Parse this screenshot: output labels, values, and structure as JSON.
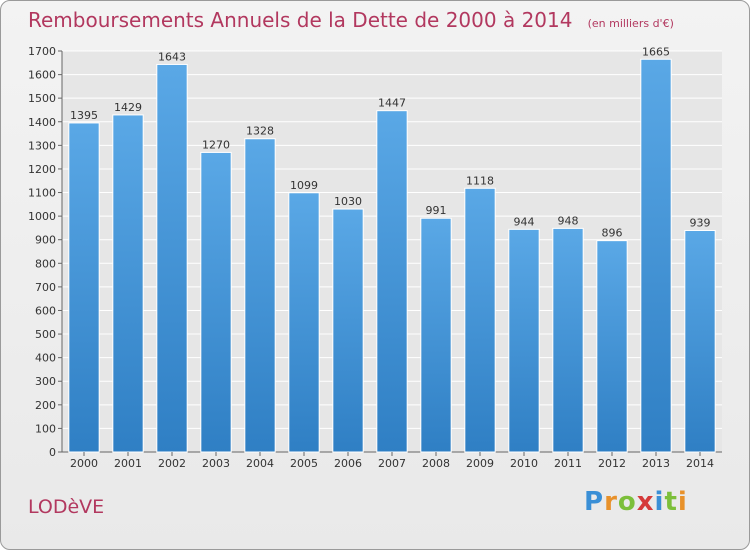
{
  "header": {
    "title": "Remboursements Annuels de la Dette de 2000 à 2014",
    "subtitle": "(en milliers d'€)"
  },
  "footer": {
    "place": "LODèVE",
    "logo_text": "Proxiti",
    "logo_colors": [
      "#3a8fd6",
      "#e8912a",
      "#7cbf3a",
      "#d53a3a",
      "#3a8fd6",
      "#7cbf3a",
      "#e8912a"
    ]
  },
  "colors": {
    "bar": "#5aa8e6",
    "bar_dark": "#2f7fc4",
    "title": "#b2385f"
  },
  "chart_data": {
    "type": "bar",
    "categories": [
      "2000",
      "2001",
      "2002",
      "2003",
      "2004",
      "2005",
      "2006",
      "2007",
      "2008",
      "2009",
      "2010",
      "2011",
      "2012",
      "2013",
      "2014"
    ],
    "values": [
      1395,
      1429,
      1643,
      1270,
      1328,
      1099,
      1030,
      1447,
      991,
      1118,
      944,
      948,
      896,
      1665,
      939
    ],
    "title": "Remboursements Annuels de la Dette de 2000 à 2014",
    "xlabel": "",
    "ylabel": "",
    "ylim": [
      0,
      1700
    ],
    "yticks": [
      0,
      100,
      200,
      300,
      400,
      500,
      600,
      700,
      800,
      900,
      1000,
      1100,
      1200,
      1300,
      1400,
      1500,
      1600,
      1700
    ],
    "grid": true,
    "legend": "none"
  }
}
